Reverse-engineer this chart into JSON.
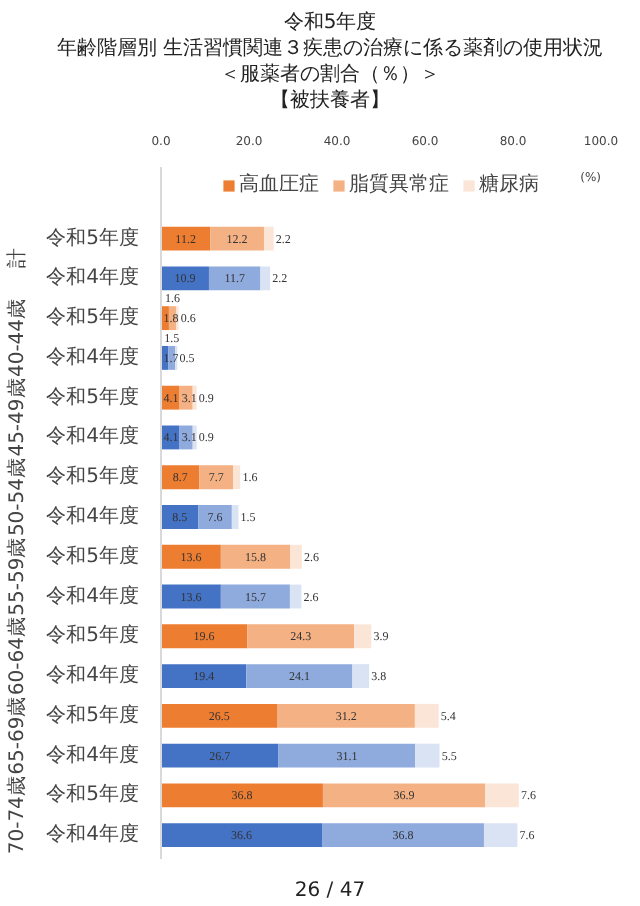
{
  "chart_data": {
    "type": "bar",
    "orientation": "horizontal",
    "stacked": true,
    "title": "令和5年度",
    "subtitle": "年齢階層別 生活習慣関連３疾患の治療に係る薬剤の使用状況",
    "xlabel": "(%)",
    "categories": [
      "令和5年度",
      "令和4年度",
      "令和5年度",
      "令和4年度",
      "令和5年度",
      "令和4年度",
      "令和5年度",
      "令和4年度",
      "令和5年度",
      "令和4年度",
      "令和5年度",
      "令和4年度",
      "令和5年度",
      "令和4年度",
      "令和5年度",
      "令和4年度"
    ],
    "annotations": [
      "＜服薬者の割合（％）＞",
      "【被扶養者】",
      "計",
      "40-44歳",
      "45-49歳",
      "50-54歳",
      "55-59歳",
      "60-64歳",
      "65-69歳",
      "70-74歳",
      "26 / 47"
    ],
    "series": [
      {
        "name": "高血圧症",
        "color": "#ed7d31",
        "colors": [
          "#ed7d31",
          "#4472c4",
          "#ed7d31",
          "#4472c4",
          "#ed7d31",
          "#4472c4",
          "#ed7d31",
          "#4472c4",
          "#ed7d31",
          "#4472c4",
          "#ed7d31",
          "#4472c4",
          "#ed7d31",
          "#4472c4",
          "#ed7d31",
          "#4472c4"
        ],
        "values": [
          11.2,
          10.9,
          1.8,
          1.7,
          4.1,
          4.1,
          8.7,
          8.5,
          13.6,
          13.6,
          19.6,
          19.4,
          26.5,
          26.7,
          36.8,
          36.6
        ]
      },
      {
        "name": "脂質異常症",
        "color": "#f4b183",
        "colors": [
          "#f4b183",
          "#8faadc",
          "#f4b183",
          "#8faadc",
          "#f4b183",
          "#8faadc",
          "#f4b183",
          "#8faadc",
          "#f4b183",
          "#8faadc",
          "#f4b183",
          "#8faadc",
          "#f4b183",
          "#8faadc",
          "#f4b183",
          "#8faadc"
        ],
        "values": [
          12.2,
          11.7,
          1.6,
          1.5,
          3.1,
          3.1,
          7.7,
          7.6,
          15.8,
          15.7,
          24.3,
          24.1,
          31.2,
          31.1,
          36.9,
          36.8
        ]
      },
      {
        "name": "糖尿病",
        "color": "#fbe5d6",
        "colors": [
          "#fbe5d6",
          "#dae3f3",
          "#fbe5d6",
          "#dae3f3",
          "#fbe5d6",
          "#dae3f3",
          "#fbe5d6",
          "#dae3f3",
          "#fbe5d6",
          "#dae3f3",
          "#fbe5d6",
          "#dae3f3",
          "#fbe5d6",
          "#dae3f3",
          "#fbe5d6",
          "#dae3f3"
        ],
        "values": [
          2.2,
          2.2,
          0.6,
          0.5,
          0.9,
          0.9,
          1.6,
          1.5,
          2.6,
          2.6,
          3.9,
          3.8,
          5.4,
          5.5,
          7.6,
          7.6
        ]
      }
    ],
    "xlim": [
      0,
      100
    ],
    "xticks": [
      {
        "value": 0,
        "label": "0.0"
      },
      {
        "value": 20,
        "label": "20.0"
      },
      {
        "value": 40,
        "label": "40.0"
      },
      {
        "value": 60,
        "label": "60.0"
      },
      {
        "value": 80,
        "label": "80.0"
      },
      {
        "value": 100,
        "label": "100.0"
      }
    ],
    "grid": false,
    "legend": "top",
    "data_labels": true
  }
}
